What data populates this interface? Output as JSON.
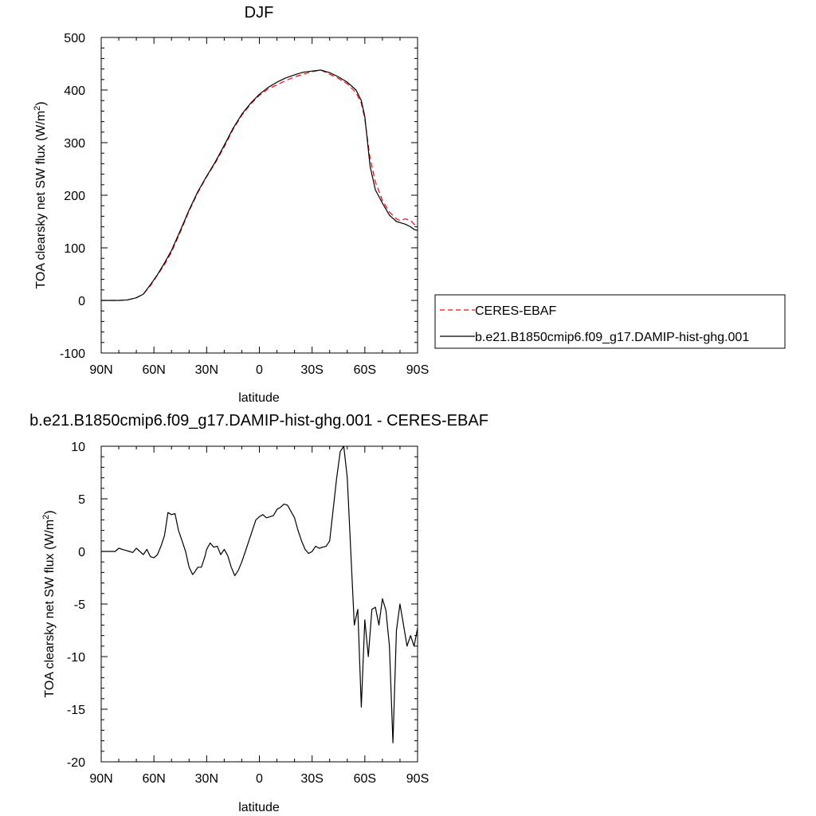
{
  "chart_data": [
    {
      "type": "line",
      "title": "DJF",
      "xlabel": "latitude",
      "ylabel": "TOA clearsky net SW flux (W/m",
      "ylabel_sup": "2",
      "ylabel_close": ")",
      "xlim": [
        -90,
        90
      ],
      "ylim": [
        -100,
        500
      ],
      "xticks": [
        -90,
        -60,
        -30,
        0,
        30,
        60,
        90
      ],
      "xticklabels": [
        "90N",
        "60N",
        "30N",
        "0",
        "30S",
        "60S",
        "90S"
      ],
      "yticks": [
        -100,
        0,
        100,
        200,
        300,
        400,
        500
      ],
      "yticklabels": [
        "-100",
        "0",
        "100",
        "200",
        "300",
        "400",
        "500"
      ],
      "grid": false,
      "legend_position": "right",
      "series": [
        {
          "name": "CERES-EBAF",
          "color": "#ff0000",
          "dash": "dashed",
          "x": [
            -90,
            -85,
            -80,
            -75,
            -70,
            -66,
            -62,
            -58,
            -54,
            -50,
            -45,
            -40,
            -35,
            -30,
            -25,
            -20,
            -15,
            -10,
            -5,
            0,
            5,
            10,
            15,
            20,
            25,
            30,
            35,
            40,
            45,
            50,
            55,
            58,
            60,
            63,
            66,
            70,
            74,
            78,
            80,
            83,
            86,
            88,
            90
          ],
          "y": [
            0,
            0,
            0,
            1,
            5,
            12,
            28,
            48,
            68,
            92,
            130,
            170,
            205,
            235,
            262,
            292,
            325,
            352,
            373,
            390,
            402,
            410,
            418,
            425,
            430,
            435,
            438,
            430,
            422,
            412,
            395,
            375,
            345,
            270,
            225,
            190,
            168,
            155,
            152,
            155,
            152,
            145,
            142
          ]
        },
        {
          "name": "b.e21.B1850cmip6.f09_g17.DAMIP-hist-ghg.001",
          "color": "#000000",
          "dash": "solid",
          "x": [
            -90,
            -85,
            -80,
            -75,
            -70,
            -66,
            -62,
            -58,
            -54,
            -50,
            -45,
            -40,
            -35,
            -30,
            -25,
            -20,
            -15,
            -10,
            -5,
            0,
            5,
            10,
            15,
            20,
            25,
            30,
            35,
            40,
            45,
            50,
            55,
            58,
            60,
            63,
            66,
            70,
            74,
            78,
            80,
            83,
            86,
            88,
            90
          ],
          "y": [
            0,
            0,
            0,
            1,
            5,
            12,
            30,
            49,
            71,
            95,
            133,
            172,
            207,
            236,
            264,
            295,
            327,
            354,
            375,
            392,
            405,
            415,
            423,
            429,
            434,
            436,
            438,
            433,
            425,
            415,
            400,
            380,
            350,
            255,
            210,
            185,
            162,
            150,
            148,
            145,
            140,
            135,
            133
          ]
        }
      ]
    },
    {
      "type": "line",
      "title": "b.e21.B1850cmip6.f09_g17.DAMIP-hist-ghg.001 - CERES-EBAF",
      "xlabel": "latitude",
      "ylabel": "TOA clearsky net SW flux (W/m",
      "ylabel_sup": "2",
      "ylabel_close": ")",
      "xlim": [
        -90,
        90
      ],
      "ylim": [
        -20,
        10
      ],
      "xticks": [
        -90,
        -60,
        -30,
        0,
        30,
        60,
        90
      ],
      "xticklabels": [
        "90N",
        "60N",
        "30N",
        "0",
        "30S",
        "60S",
        "90S"
      ],
      "yticks": [
        -20,
        -15,
        -10,
        -5,
        0,
        5,
        10
      ],
      "yticklabels": [
        "-20",
        "-15",
        "-10",
        "-5",
        "0",
        "5",
        "10"
      ],
      "grid": false,
      "series": [
        {
          "name": "",
          "color": "#000000",
          "dash": "solid",
          "x": [
            -90,
            -82,
            -80,
            -78,
            -76,
            -74,
            -72,
            -70,
            -68,
            -66,
            -64,
            -62,
            -60,
            -58,
            -56,
            -54,
            -52,
            -50,
            -48,
            -46,
            -44,
            -42,
            -40,
            -38,
            -37,
            -35,
            -33,
            -31,
            -30,
            -28,
            -26,
            -24,
            -22,
            -20,
            -18,
            -16,
            -14,
            -12,
            -10,
            -8,
            -6,
            -4,
            -2,
            0,
            2,
            4,
            6,
            8,
            10,
            12,
            14,
            16,
            18,
            20,
            22,
            24,
            26,
            28,
            30,
            32,
            34,
            36,
            38,
            40,
            42,
            44,
            46,
            48,
            50,
            52,
            54,
            56,
            58,
            60,
            62,
            64,
            66,
            68,
            70,
            72,
            74,
            76,
            78,
            80,
            82,
            84,
            86,
            88,
            90
          ],
          "y": [
            0,
            0,
            0.3,
            0.2,
            0.1,
            0,
            -0.1,
            0.3,
            0,
            -0.3,
            0.2,
            -0.5,
            -0.6,
            -0.3,
            0.5,
            1.5,
            3.7,
            3.5,
            3.6,
            2,
            1,
            0,
            -1.5,
            -2.2,
            -2,
            -1.5,
            -1.5,
            -0.5,
            0.2,
            0.8,
            0.4,
            0.5,
            -0.3,
            0.2,
            -0.4,
            -1.5,
            -2.3,
            -1.8,
            -1,
            0,
            1,
            2,
            3,
            3.3,
            3.5,
            3.2,
            3.3,
            3.4,
            4,
            4.2,
            4.5,
            4.4,
            3.8,
            3.2,
            2,
            1,
            0.2,
            -0.2,
            0,
            0.5,
            0.3,
            0.4,
            0.5,
            1,
            4,
            7,
            9.5,
            10,
            7,
            0,
            -7,
            -5.5,
            -14.8,
            -6.5,
            -10,
            -5.5,
            -5.3,
            -7,
            -4.5,
            -5.6,
            -9,
            -18.2,
            -7.5,
            -5,
            -7,
            -9,
            -8,
            -9,
            -7.3
          ]
        }
      ]
    }
  ]
}
